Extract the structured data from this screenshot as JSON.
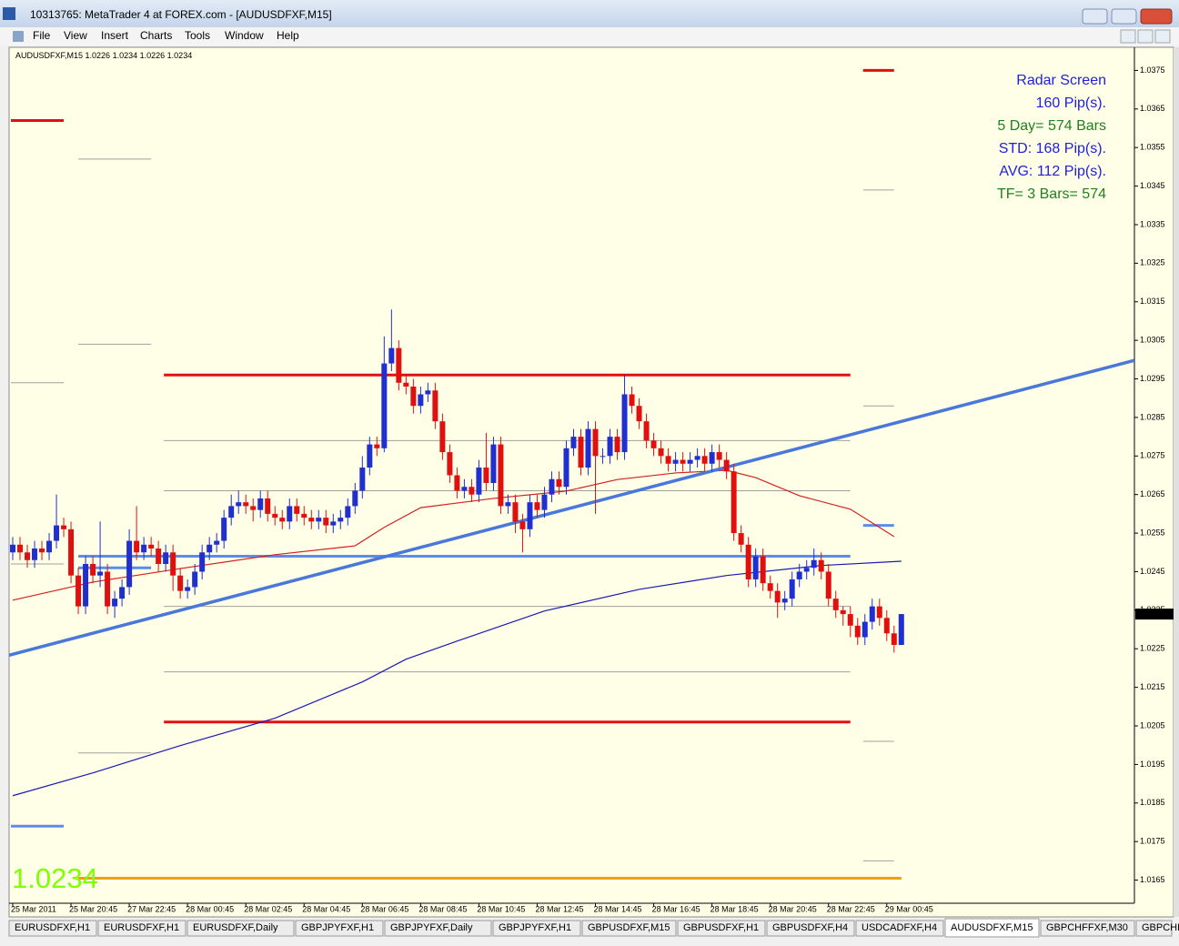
{
  "window": {
    "title": "10313765: MetaTrader 4 at FOREX.com - [AUDUSDFXF,M15]"
  },
  "menu": [
    "File",
    "View",
    "Insert",
    "Charts",
    "Tools",
    "Window",
    "Help"
  ],
  "chart_data": {
    "type": "candlestick",
    "symbol": "AUDUSDFXF,M15",
    "up_color": "#1f2fd0",
    "down_color": "#e01010",
    "xlim": [
      -0.5,
      154
    ],
    "ylim": [
      1.0159,
      1.0381
    ],
    "yticks": [
      1.0375,
      1.0365,
      1.0355,
      1.0345,
      1.0335,
      1.0325,
      1.0315,
      1.0305,
      1.0295,
      1.0285,
      1.0275,
      1.0265,
      1.0255,
      1.0245,
      1.0235,
      1.0225,
      1.0215,
      1.0205,
      1.0195,
      1.0185,
      1.0175,
      1.0165
    ],
    "xticks": [
      {
        "value": 0,
        "label": "25 Mar 2011"
      },
      {
        "value": 8,
        "label": "25 Mar 20:45"
      },
      {
        "value": 16,
        "label": "27 Mar 22:45"
      },
      {
        "value": 24,
        "label": "28 Mar 00:45"
      },
      {
        "value": 32,
        "label": "28 Mar 02:45"
      },
      {
        "value": 40,
        "label": "28 Mar 04:45"
      },
      {
        "value": 48,
        "label": "28 Mar 06:45"
      },
      {
        "value": 56,
        "label": "28 Mar 08:45"
      },
      {
        "value": 64,
        "label": "28 Mar 10:45"
      },
      {
        "value": 72,
        "label": "28 Mar 12:45"
      },
      {
        "value": 80,
        "label": "28 Mar 14:45"
      },
      {
        "value": 88,
        "label": "28 Mar 16:45"
      },
      {
        "value": 96,
        "label": "28 Mar 18:45"
      },
      {
        "value": 104,
        "label": "28 Mar 20:45"
      },
      {
        "value": 112,
        "label": "28 Mar 22:45"
      },
      {
        "value": 120,
        "label": "29 Mar 00:45"
      }
    ],
    "open": [
      1.025,
      1.0252,
      1.025,
      1.0248,
      1.0251,
      1.025,
      1.0253,
      1.0257,
      1.0256,
      1.0244,
      1.0236,
      1.0247,
      1.0244,
      1.0245,
      1.0236,
      1.0238,
      1.0241,
      1.0253,
      1.025,
      1.0252,
      1.0251,
      1.0247,
      1.025,
      1.0244,
      1.024,
      1.0241,
      1.0245,
      1.025,
      1.0252,
      1.0253,
      1.0259,
      1.0262,
      1.0263,
      1.0262,
      1.0261,
      1.0264,
      1.026,
      1.0259,
      1.0258,
      1.0262,
      1.026,
      1.0259,
      1.0258,
      1.0259,
      1.0257,
      1.0258,
      1.0259,
      1.0262,
      1.0266,
      1.0272,
      1.0278,
      1.0277,
      1.0299,
      1.0303,
      1.0294,
      1.0293,
      1.0288,
      1.0291,
      1.0292,
      1.0284,
      1.0276,
      1.027,
      1.0266,
      1.0267,
      1.0265,
      1.0272,
      1.0268,
      1.0278,
      1.0262,
      1.0263,
      1.0258,
      1.0256,
      1.0263,
      1.0261,
      1.0265,
      1.0269,
      1.0267,
      1.0277,
      1.028,
      1.0272,
      1.0282,
      1.0275,
      1.0275,
      1.028,
      1.0276,
      1.0291,
      1.0288,
      1.0284,
      1.0279,
      1.0277,
      1.0275,
      1.0273,
      1.0274,
      1.0273,
      1.0274,
      1.0275,
      1.0273,
      1.0276,
      1.0274,
      1.0271,
      1.0255,
      1.0252,
      1.0243,
      1.0249,
      1.0242,
      1.024,
      1.0237,
      1.0238,
      1.0243,
      1.0245,
      1.0246,
      1.0248,
      1.0245,
      1.0238,
      1.0235,
      1.0234,
      1.0231,
      1.0228,
      1.0232,
      1.0236,
      1.0233,
      1.0229,
      1.0226
    ],
    "high": [
      1.0254,
      1.0254,
      1.0252,
      1.0253,
      1.0253,
      1.0255,
      1.0265,
      1.0259,
      1.0258,
      1.0246,
      1.0249,
      1.0249,
      1.0258,
      1.0247,
      1.024,
      1.0243,
      1.0256,
      1.0262,
      1.0254,
      1.0254,
      1.0253,
      1.0252,
      1.0252,
      1.0246,
      1.0243,
      1.0247,
      1.0252,
      1.0254,
      1.0255,
      1.0261,
      1.0265,
      1.0266,
      1.0265,
      1.0264,
      1.0266,
      1.0266,
      1.0262,
      1.0261,
      1.0264,
      1.0264,
      1.0262,
      1.0261,
      1.0261,
      1.0261,
      1.026,
      1.0261,
      1.0264,
      1.0268,
      1.0275,
      1.028,
      1.028,
      1.0306,
      1.0313,
      1.0305,
      1.0296,
      1.0295,
      1.0293,
      1.0294,
      1.0294,
      1.0286,
      1.0278,
      1.0272,
      1.0269,
      1.0269,
      1.0274,
      1.0281,
      1.028,
      1.028,
      1.0265,
      1.0265,
      1.026,
      1.0265,
      1.0265,
      1.0267,
      1.0271,
      1.0271,
      1.0279,
      1.0282,
      1.0282,
      1.0284,
      1.0284,
      1.0277,
      1.0282,
      1.0282,
      1.0296,
      1.0293,
      1.029,
      1.0286,
      1.0281,
      1.0279,
      1.0277,
      1.0276,
      1.0276,
      1.0276,
      1.0277,
      1.0277,
      1.0278,
      1.0278,
      1.0276,
      1.0273,
      1.0257,
      1.0254,
      1.0251,
      1.0251,
      1.0244,
      1.0242,
      1.024,
      1.0245,
      1.0247,
      1.0248,
      1.0251,
      1.025,
      1.0247,
      1.024,
      1.0236,
      1.0236,
      1.0233,
      1.0234,
      1.0238,
      1.0238,
      1.0235,
      1.0231,
      1.0234
    ],
    "low": [
      1.0248,
      1.0248,
      1.0246,
      1.0246,
      1.0248,
      1.0248,
      1.0251,
      1.0254,
      1.0242,
      1.0234,
      1.0234,
      1.0242,
      1.0241,
      1.0234,
      1.0233,
      1.0236,
      1.0239,
      1.0248,
      1.0248,
      1.0249,
      1.0245,
      1.0245,
      1.024,
      1.0238,
      1.0238,
      1.0239,
      1.0243,
      1.0248,
      1.025,
      1.0251,
      1.0257,
      1.026,
      1.026,
      1.0258,
      1.0259,
      1.0258,
      1.0257,
      1.0256,
      1.0256,
      1.0258,
      1.0257,
      1.0256,
      1.0256,
      1.0255,
      1.0255,
      1.0256,
      1.0257,
      1.026,
      1.0264,
      1.027,
      1.0275,
      1.0276,
      1.0297,
      1.0292,
      1.0291,
      1.0286,
      1.0286,
      1.0289,
      1.0282,
      1.0274,
      1.0268,
      1.0264,
      1.0264,
      1.0263,
      1.0263,
      1.0266,
      1.0266,
      1.026,
      1.026,
      1.0255,
      1.025,
      1.0254,
      1.0259,
      1.0259,
      1.0263,
      1.0265,
      1.0265,
      1.0275,
      1.027,
      1.027,
      1.026,
      1.0273,
      1.0273,
      1.0274,
      1.0274,
      1.0286,
      1.0282,
      1.0277,
      1.0275,
      1.0273,
      1.0271,
      1.0271,
      1.0271,
      1.0271,
      1.0272,
      1.0271,
      1.0271,
      1.0272,
      1.0269,
      1.0253,
      1.025,
      1.0241,
      1.0241,
      1.024,
      1.0238,
      1.0233,
      1.0235,
      1.0236,
      1.0241,
      1.0243,
      1.0244,
      1.0243,
      1.0236,
      1.0233,
      1.0231,
      1.0228,
      1.0226,
      1.0226,
      1.023,
      1.0231,
      1.0227,
      1.0224,
      1.0226
    ],
    "close": [
      1.0252,
      1.025,
      1.0248,
      1.0251,
      1.025,
      1.0253,
      1.0257,
      1.0256,
      1.0244,
      1.0236,
      1.0247,
      1.0244,
      1.0245,
      1.0236,
      1.0238,
      1.0241,
      1.0253,
      1.025,
      1.0252,
      1.0251,
      1.0247,
      1.025,
      1.0244,
      1.024,
      1.0241,
      1.0245,
      1.025,
      1.0252,
      1.0253,
      1.0259,
      1.0262,
      1.0263,
      1.0262,
      1.0261,
      1.0264,
      1.026,
      1.0259,
      1.0258,
      1.0262,
      1.026,
      1.0259,
      1.0258,
      1.0259,
      1.0257,
      1.0258,
      1.0259,
      1.0262,
      1.0266,
      1.0272,
      1.0278,
      1.0277,
      1.0299,
      1.0303,
      1.0294,
      1.0293,
      1.0288,
      1.0291,
      1.0292,
      1.0284,
      1.0276,
      1.027,
      1.0266,
      1.0267,
      1.0265,
      1.0272,
      1.0268,
      1.0278,
      1.0262,
      1.0263,
      1.0258,
      1.0256,
      1.0263,
      1.0261,
      1.0265,
      1.0269,
      1.0267,
      1.0277,
      1.028,
      1.0272,
      1.0282,
      1.0275,
      1.0275,
      1.028,
      1.0276,
      1.0291,
      1.0288,
      1.0284,
      1.0279,
      1.0277,
      1.0275,
      1.0273,
      1.0274,
      1.0273,
      1.0274,
      1.0275,
      1.0273,
      1.0276,
      1.0274,
      1.0271,
      1.0255,
      1.0252,
      1.0243,
      1.0249,
      1.0242,
      1.024,
      1.0237,
      1.0238,
      1.0243,
      1.0245,
      1.0246,
      1.0248,
      1.0245,
      1.0238,
      1.0235,
      1.0234,
      1.0231,
      1.0228,
      1.0232,
      1.0236,
      1.0233,
      1.0229,
      1.0226,
      1.0234
    ],
    "moving_averages": [
      {
        "color": "#d42020",
        "x": [
          0,
          11,
          23,
          36,
          47,
          51,
          56,
          66,
          76,
          83,
          91,
          98,
          102,
          108,
          115,
          121
        ],
        "values": [
          1.02376,
          1.02423,
          1.02458,
          1.02494,
          1.02517,
          1.02565,
          1.02616,
          1.0264,
          1.02659,
          1.02689,
          1.02706,
          1.02713,
          1.02694,
          1.02647,
          1.02612,
          1.02541
        ]
      },
      {
        "color": "#1a1ab0",
        "x": [
          0,
          11,
          23,
          36,
          48,
          54,
          61,
          73,
          86,
          98,
          111,
          122
        ],
        "values": [
          1.01869,
          1.01928,
          1.01999,
          1.0207,
          1.02164,
          1.02223,
          1.0227,
          1.02348,
          1.02404,
          1.0244,
          1.02466,
          1.02477
        ]
      }
    ],
    "trendline": {
      "color": "#4a78d8",
      "x": [
        0,
        154
      ],
      "values": [
        1.02237,
        1.02998
      ]
    },
    "levels": [
      {
        "value": 1.0296,
        "color": "#e01010",
        "x": [
          20.75,
          115
        ]
      },
      {
        "value": 1.0206,
        "color": "#e01010",
        "x": [
          20.75,
          115
        ]
      },
      {
        "value": 1.0249,
        "color": "#5b8de8",
        "x": [
          9,
          115
        ]
      },
      {
        "value": 1.0246,
        "color": "#5b8de8",
        "x": [
          9,
          19
        ]
      },
      {
        "value": 1.0279,
        "color": "#a0a0a0",
        "x": [
          20.75,
          115
        ]
      },
      {
        "value": 1.0266,
        "color": "#a0a0a0",
        "x": [
          20.75,
          115
        ]
      },
      {
        "value": 1.0236,
        "color": "#a0a0a0",
        "x": [
          20.75,
          115
        ]
      },
      {
        "value": 1.0219,
        "color": "#a0a0a0",
        "x": [
          20.75,
          115
        ]
      },
      {
        "value": 1.0362,
        "color": "#e01010",
        "x": [
          -0.25,
          7
        ]
      },
      {
        "value": 1.0179,
        "color": "#5b8de8",
        "x": [
          -0.25,
          7
        ]
      },
      {
        "value": 1.0294,
        "color": "#a0a0a0",
        "x": [
          -0.25,
          7
        ]
      },
      {
        "value": 1.0247,
        "color": "#a0a0a0",
        "x": [
          -0.25,
          7
        ]
      },
      {
        "value": 1.0352,
        "color": "#a0a0a0",
        "x": [
          9,
          19
        ]
      },
      {
        "value": 1.0304,
        "color": "#a0a0a0",
        "x": [
          9,
          19
        ]
      },
      {
        "value": 1.0198,
        "color": "#a0a0a0",
        "x": [
          9,
          19
        ]
      },
      {
        "value": 1.0375,
        "color": "#e01010",
        "x": [
          116.75,
          121
        ]
      },
      {
        "value": 1.0344,
        "color": "#a0a0a0",
        "x": [
          116.75,
          121
        ]
      },
      {
        "value": 1.0288,
        "color": "#a0a0a0",
        "x": [
          116.75,
          121
        ]
      },
      {
        "value": 1.0257,
        "color": "#5b8de8",
        "x": [
          116.75,
          121
        ]
      },
      {
        "value": 1.0201,
        "color": "#a0a0a0",
        "x": [
          116.75,
          121
        ]
      },
      {
        "value": 1.017,
        "color": "#a0a0a0",
        "x": [
          116.75,
          121
        ]
      },
      {
        "value": 1.01655,
        "color": "#f0a000",
        "x": [
          9,
          122
        ]
      }
    ],
    "last_price": 1.0234,
    "radar": [
      {
        "text": "Radar Screen",
        "color": "#2020e0"
      },
      {
        "text": "160 Pip(s).",
        "color": "#2020e0"
      },
      {
        "text": "5 Day= 574 Bars",
        "color": "#208020"
      },
      {
        "text": "STD: 168 Pip(s).",
        "color": "#2020e0"
      },
      {
        "text": "AVG: 112 Pip(s).",
        "color": "#2020e0"
      },
      {
        "text": "TF= 3 Bars= 574",
        "color": "#208020"
      }
    ]
  },
  "tabs": [
    "EURUSDFXF,H1",
    "EURUSDFXF,H1",
    "EURUSDFXF,Daily",
    "GBPJPYFXF,H1",
    "GBPJPYFXF,Daily",
    "GBPJPYFXF,H1",
    "GBPUSDFXF,M15",
    "GBPUSDFXF,H1",
    "GBPUSDFXF,H4",
    "USDCADFXF,H4",
    "AUDUSDFXF,M15",
    "GBPCHFFXF,M30",
    "GBPCHF"
  ],
  "active_tab": 10
}
